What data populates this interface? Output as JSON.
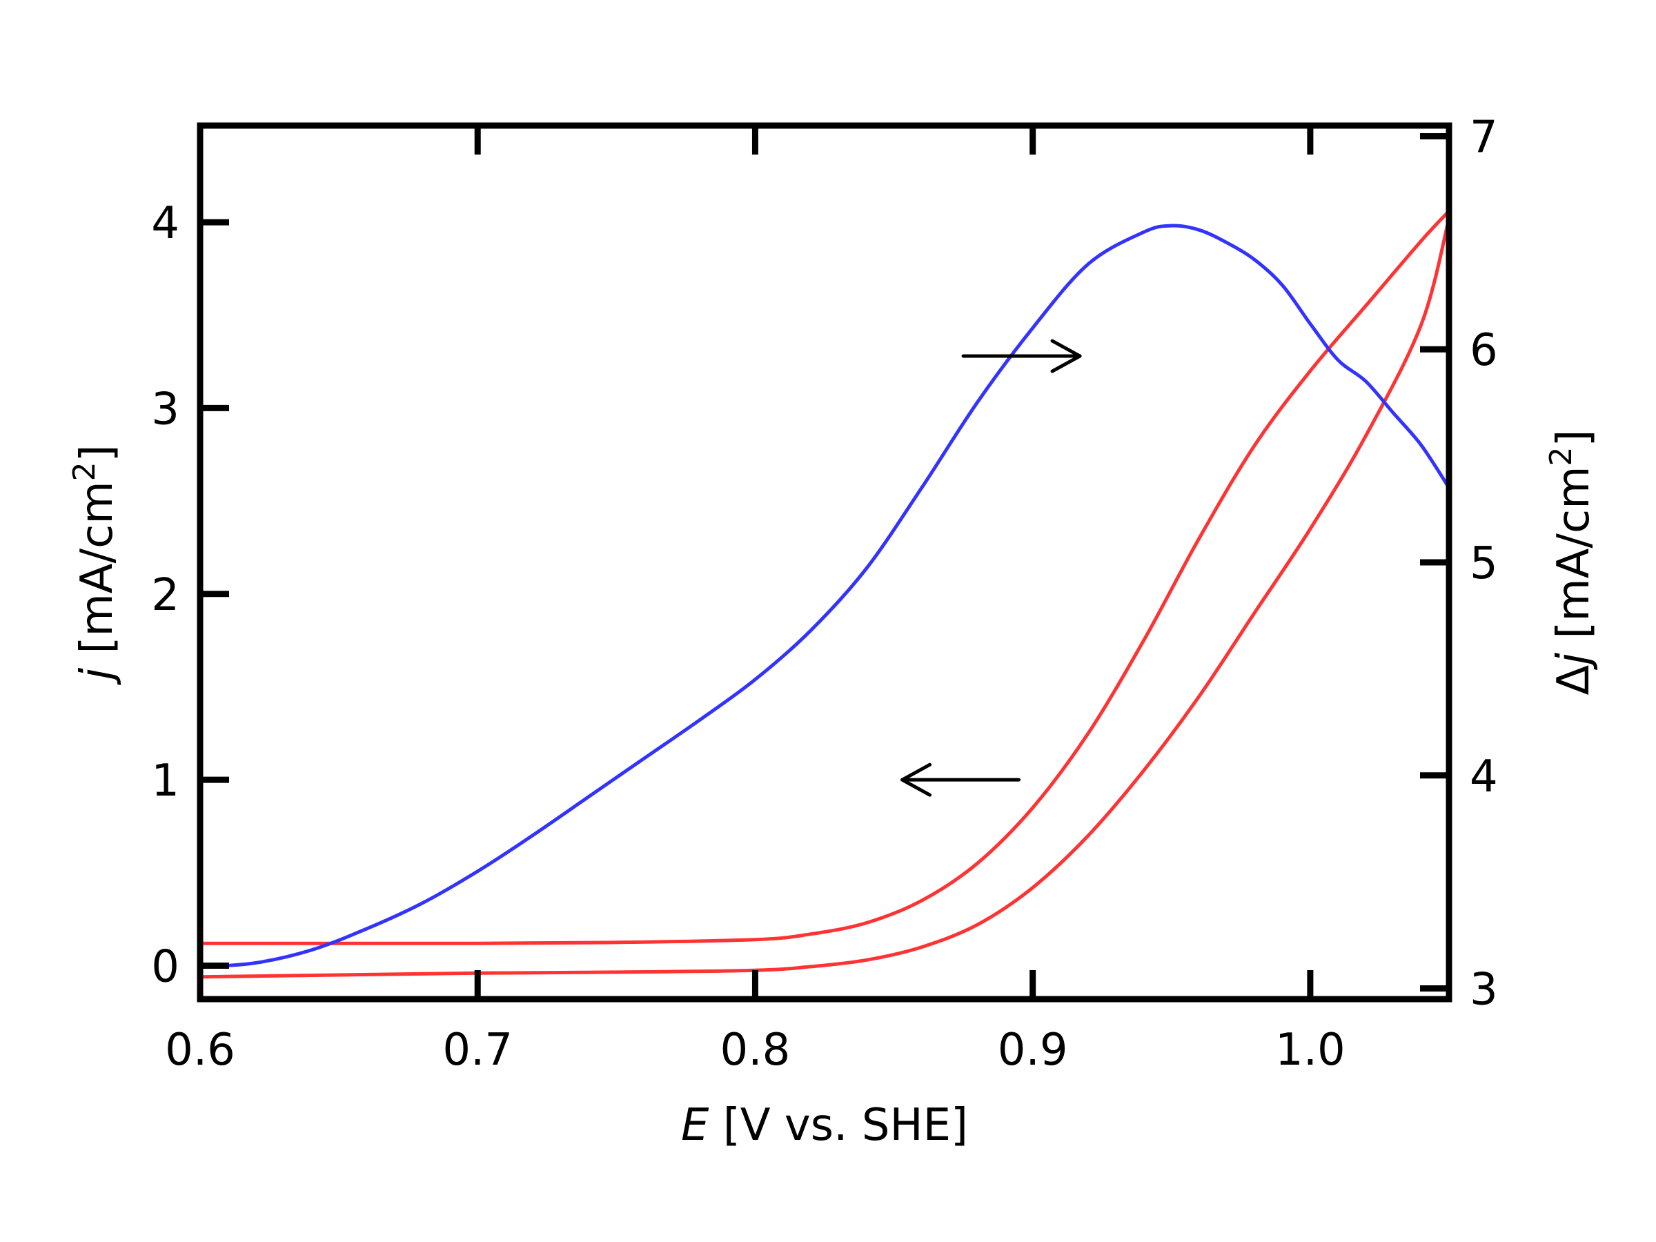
{
  "chart_data": {
    "type": "line",
    "xlabel": {
      "var": "E",
      "rest": " [V vs. SHE]"
    },
    "ylabel_left": {
      "var": "j",
      "rest": " [mA/cm",
      "sup": "2",
      "end": "]"
    },
    "ylabel_right": {
      "prefix": "Δ",
      "var": "j",
      "rest": " [mA/cm",
      "sup": "2",
      "end": "]"
    },
    "xlim": [
      0.6,
      1.05
    ],
    "ylim_left": [
      -0.18,
      4.52
    ],
    "ylim_right": [
      2.95,
      7.05
    ],
    "x_ticks": [
      0.6,
      0.7,
      0.8,
      0.9,
      1.0
    ],
    "x_tick_labels": [
      "0.6",
      "0.7",
      "0.8",
      "0.9",
      "1.0"
    ],
    "y_left_ticks": [
      0,
      1,
      2,
      3,
      4
    ],
    "y_left_tick_labels": [
      "0",
      "1",
      "2",
      "3",
      "4"
    ],
    "y_right_ticks": [
      3,
      4,
      5,
      6,
      7
    ],
    "y_right_tick_labels": [
      "3",
      "4",
      "5",
      "6",
      "7"
    ],
    "grid": false,
    "colors": {
      "j": "#ff3333",
      "delta_j": "#3333ff",
      "axes": "#000000"
    },
    "series": [
      {
        "axis": "left",
        "color": "#ff3333",
        "x": [
          0.6,
          0.65,
          0.7,
          0.75,
          0.8,
          0.82,
          0.84,
          0.86,
          0.88,
          0.9,
          0.92,
          0.94,
          0.96,
          0.98,
          1.0,
          1.02,
          1.04,
          1.05
        ],
        "y": [
          0.12,
          0.12,
          0.12,
          0.125,
          0.14,
          0.17,
          0.23,
          0.35,
          0.55,
          0.85,
          1.25,
          1.75,
          2.3,
          2.8,
          3.2,
          3.55,
          3.9,
          4.06
        ]
      },
      {
        "axis": "left",
        "color": "#ff3333",
        "x": [
          0.6,
          0.65,
          0.7,
          0.75,
          0.8,
          0.82,
          0.84,
          0.86,
          0.88,
          0.9,
          0.92,
          0.94,
          0.96,
          0.98,
          1.0,
          1.02,
          1.04,
          1.05
        ],
        "y": [
          -0.06,
          -0.05,
          -0.04,
          -0.035,
          -0.025,
          -0.005,
          0.03,
          0.1,
          0.22,
          0.42,
          0.7,
          1.05,
          1.45,
          1.9,
          2.35,
          2.85,
          3.45,
          4.02
        ]
      },
      {
        "axis": "right",
        "color": "#3333ff",
        "x": [
          0.6,
          0.62,
          0.64,
          0.66,
          0.68,
          0.7,
          0.72,
          0.74,
          0.76,
          0.78,
          0.8,
          0.82,
          0.84,
          0.86,
          0.88,
          0.9,
          0.92,
          0.94,
          0.95,
          0.96,
          0.97,
          0.98,
          0.99,
          1.0,
          1.01,
          1.02,
          1.03,
          1.04,
          1.05
        ],
        "y": [
          3.1,
          3.12,
          3.18,
          3.28,
          3.4,
          3.55,
          3.72,
          3.9,
          4.08,
          4.26,
          4.45,
          4.68,
          4.97,
          5.35,
          5.75,
          6.1,
          6.4,
          6.55,
          6.58,
          6.56,
          6.5,
          6.42,
          6.3,
          6.12,
          5.95,
          5.85,
          5.7,
          5.55,
          5.35
        ]
      }
    ],
    "annotations": [
      {
        "type": "arrow",
        "direction": "right",
        "from": [
          0.875,
          3.28
        ],
        "to": [
          0.917,
          3.28
        ],
        "axis": "left"
      },
      {
        "type": "arrow",
        "direction": "left",
        "from": [
          0.895,
          1.0
        ],
        "to": [
          0.853,
          1.0
        ],
        "axis": "left"
      }
    ]
  }
}
